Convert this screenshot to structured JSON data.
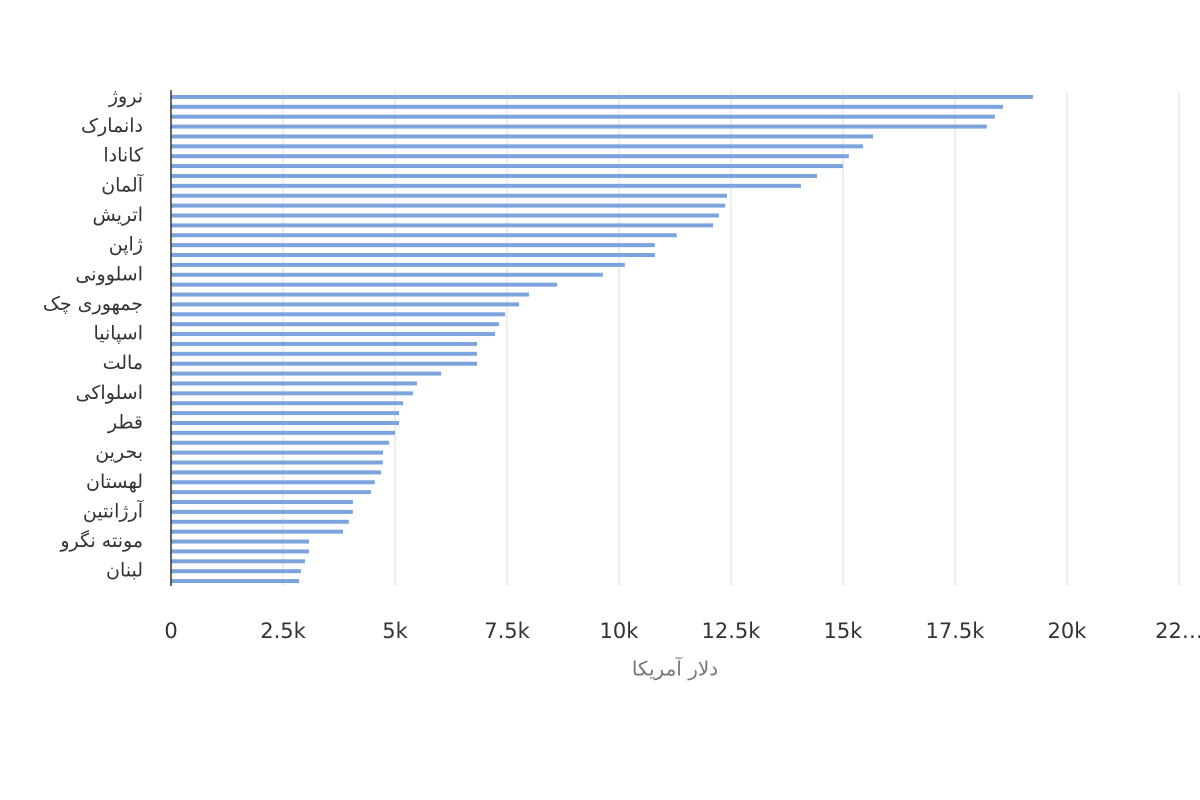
{
  "chart_data": {
    "type": "barh",
    "x_label": "دلار آمریکا",
    "categories": [
      "نروژ",
      null,
      null,
      "دانمارک",
      null,
      null,
      "کانادا",
      null,
      null,
      "آلمان",
      null,
      null,
      "اتریش",
      null,
      null,
      "ژاپن",
      null,
      null,
      "اسلوونی",
      null,
      null,
      "جمهوری چک",
      null,
      null,
      "اسپانیا",
      null,
      null,
      "مالت",
      null,
      null,
      "اسلواکی",
      null,
      null,
      "قطر",
      null,
      null,
      "بحرین",
      null,
      null,
      "لهستان",
      null,
      null,
      "آرژانتین",
      null,
      null,
      "مونته نگرو",
      null,
      null,
      "لبنان",
      null
    ],
    "values": [
      19240,
      18570,
      18390,
      18210,
      15670,
      15450,
      15130,
      15000,
      14420,
      14060,
      12410,
      12370,
      12230,
      12100,
      11290,
      10800,
      10800,
      10130,
      9640,
      8620,
      7990,
      7770,
      7460,
      7320,
      7230,
      6830,
      6830,
      6830,
      6030,
      5490,
      5400,
      5180,
      5090,
      5090,
      5000,
      4870,
      4730,
      4730,
      4690,
      4550,
      4460,
      4060,
      4060,
      3970,
      3840,
      3080,
      3080,
      2990,
      2900,
      2860
    ],
    "color": "#7ba3dc",
    "xlim": [
      0,
      22500
    ],
    "xticks": [
      0,
      {
        "value": 2500,
        "label": "2.5k"
      },
      {
        "value": 5000,
        "label": "5k"
      },
      {
        "value": 7500,
        "label": "7.5k"
      },
      {
        "value": 10000,
        "label": "10k"
      },
      {
        "value": 12500,
        "label": "12.5k"
      },
      {
        "value": 15000,
        "label": "15k"
      },
      {
        "value": 17500,
        "label": "17.5k"
      },
      {
        "value": 20000,
        "label": "20k"
      },
      {
        "value": 22500,
        "label": "22…"
      }
    ],
    "grid": true
  }
}
